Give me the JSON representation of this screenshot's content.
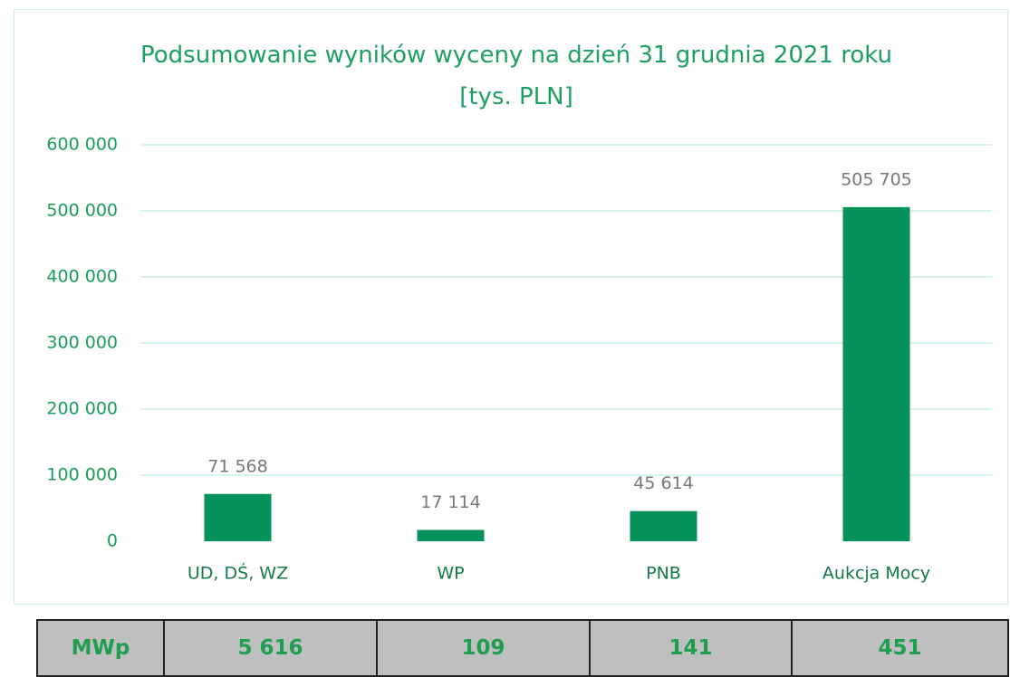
{
  "chart_data": {
    "type": "bar",
    "title": "Podsumowanie wyników wyceny na dzień 31 grudnia 2021 roku [tys. PLN]",
    "categories": [
      "UD, DŚ, WZ",
      "WP",
      "PNB",
      "Aukcja Mocy"
    ],
    "values": [
      71568,
      17114,
      45614,
      505705
    ],
    "value_labels": [
      "71 568",
      "17 114",
      "45 614",
      "505 705"
    ],
    "color": "#05935b",
    "ylim": [
      0,
      600000
    ],
    "yticks": [
      0,
      {
        "value": 100000,
        "label": "100 000"
      },
      {
        "value": 200000,
        "label": "200 000"
      },
      {
        "value": 300000,
        "label": "300 000"
      },
      {
        "value": 400000,
        "label": "400 000"
      },
      {
        "value": 500000,
        "label": "500 000"
      },
      {
        "value": 600000,
        "label": "600 000"
      }
    ],
    "grid": true
  },
  "table": {
    "rows": [
      [
        "MWp",
        "5 616",
        "109",
        "141",
        "451"
      ]
    ]
  }
}
